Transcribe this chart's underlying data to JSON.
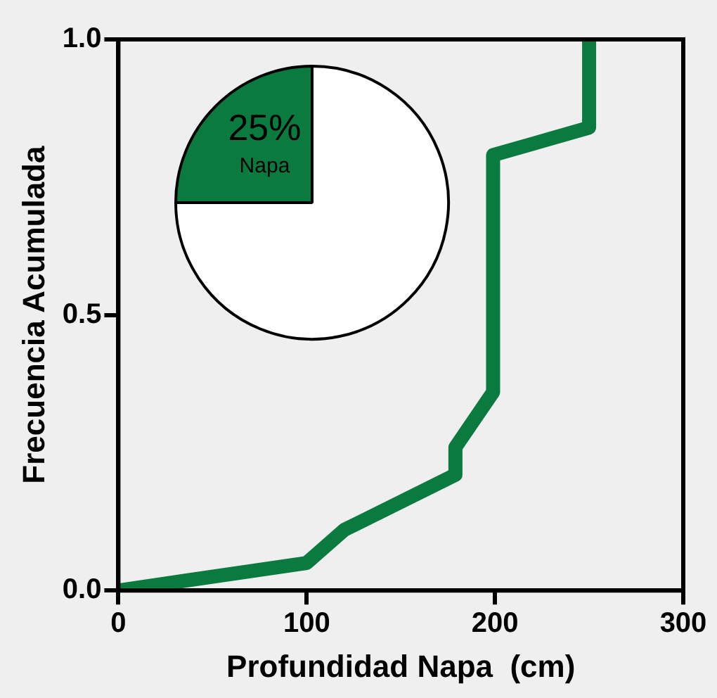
{
  "chart_data": [
    {
      "type": "line",
      "xlabel": "Profundidad Napa  (cm)",
      "ylabel": "Frecuencia Acumulada",
      "series": [
        {
          "color": "#0a7a3e",
          "x": [
            0,
            100,
            120,
            179,
            179,
            199,
            199,
            250,
            250
          ],
          "values": [
            0,
            0.05,
            0.11,
            0.21,
            0.26,
            0.36,
            0.79,
            0.84,
            1.0
          ]
        }
      ],
      "xlim": [
        0,
        300
      ],
      "xticks": [
        0,
        100,
        200,
        300
      ],
      "ylim": [
        0,
        1
      ],
      "yticks": [
        {
          "value": 0,
          "label": "0.0"
        },
        {
          "value": 0.5,
          "label": "0.5"
        },
        {
          "value": 1,
          "label": "1.0"
        }
      ],
      "grid": false,
      "legend": false,
      "marker": "none",
      "line_style": "solid"
    },
    {
      "type": "pie",
      "categories": [
        "Napa",
        null
      ],
      "values": [
        25,
        75
      ],
      "colors": [
        "#0a7a3e",
        "#ffffff"
      ],
      "value_labels": [
        "25%",
        null
      ],
      "legend": false
    }
  ]
}
